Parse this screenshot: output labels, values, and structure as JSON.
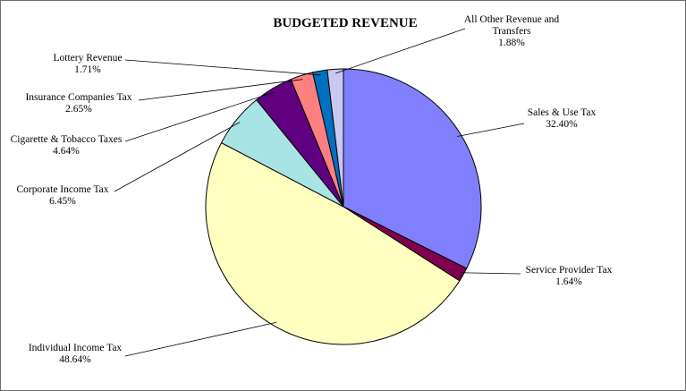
{
  "chart_data": {
    "type": "pie",
    "title": "BUDGETED REVENUE",
    "slices": [
      {
        "label": "Sales & Use Tax",
        "value": 32.4,
        "pct": "32.40%",
        "color": "#8080ff"
      },
      {
        "label": "Service Provider Tax",
        "value": 1.64,
        "pct": "1.64%",
        "color": "#800050"
      },
      {
        "label": "Individual Income Tax",
        "value": 48.64,
        "pct": "48.64%",
        "color": "#ffffc0"
      },
      {
        "label": "Corporate Income Tax",
        "value": 6.45,
        "pct": "6.45%",
        "color": "#a8e4e4"
      },
      {
        "label": "Cigarette & Tobacco Taxes",
        "value": 4.64,
        "pct": "4.64%",
        "color": "#600080"
      },
      {
        "label": "Insurance Companies Tax",
        "value": 2.65,
        "pct": "2.65%",
        "color": "#ff8080"
      },
      {
        "label": "Lottery Revenue",
        "value": 1.71,
        "pct": "1.71%",
        "color": "#0070c0"
      },
      {
        "label": "All Other Revenue and Transfers",
        "value": 1.88,
        "pct": "1.88%",
        "color": "#c8c8f0"
      }
    ]
  }
}
